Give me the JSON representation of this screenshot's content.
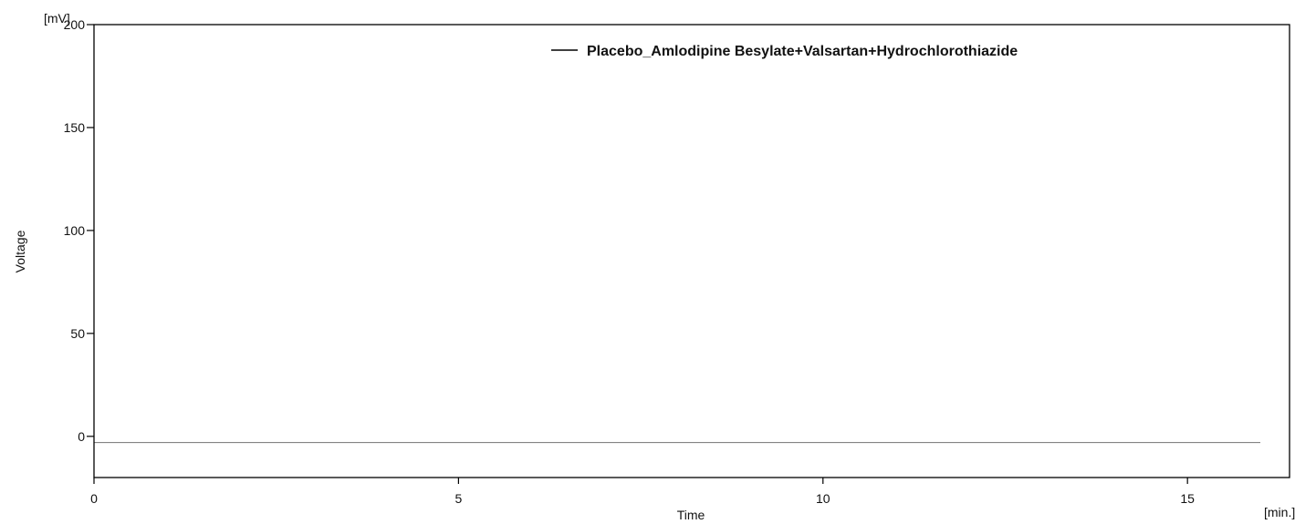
{
  "chart_data": {
    "type": "line",
    "title": "",
    "xlabel": "Time",
    "ylabel": "Voltage",
    "x_unit": "[min.]",
    "y_unit": "[mV]",
    "xlim": [
      0,
      16.4
    ],
    "ylim": [
      -20,
      200
    ],
    "x_ticks": [
      0,
      5,
      10,
      15
    ],
    "y_ticks": [
      0,
      50,
      100,
      150,
      200
    ],
    "grid": false,
    "legend": {
      "placement": "top-right"
    },
    "series": [
      {
        "name": "Placebo_Amlodipine Besylate+Valsartan+Hydrochlorothiazide",
        "color": "#000000",
        "x": [
          0,
          1.0,
          2.0,
          3.0,
          4.0,
          5.0,
          6.0,
          7.0,
          8.0,
          9.0,
          10.0,
          11.0,
          12.0,
          13.0,
          14.0,
          15.0,
          16.0
        ],
        "y": [
          -3,
          -3,
          -3,
          -3,
          -3,
          -3,
          -3,
          -3,
          -3,
          -3,
          -3,
          -3,
          -3,
          -3,
          -3,
          -3,
          -3
        ]
      }
    ]
  }
}
